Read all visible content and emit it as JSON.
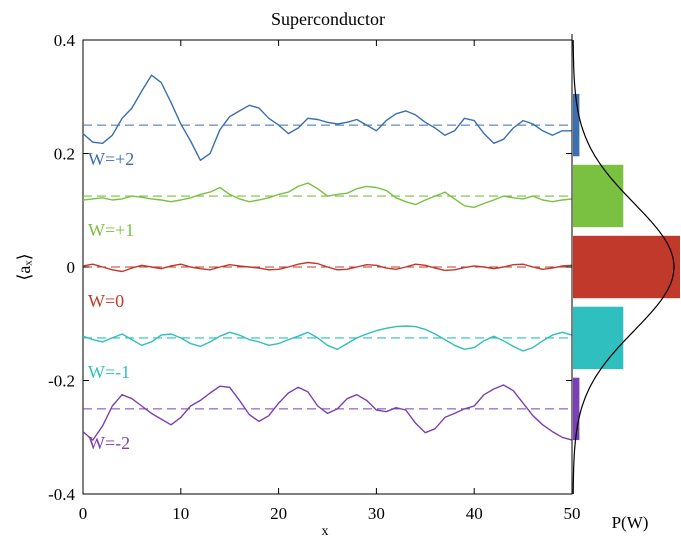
{
  "chart_data": {
    "type": "line",
    "title": "Superconductor",
    "xlabel": "x",
    "ylabel": "⟨aₓ⟩",
    "hist_label": "P(W)",
    "xlim": [
      0,
      50
    ],
    "ylim": [
      -0.4,
      0.4
    ],
    "xticks": [
      "0",
      "10",
      "20",
      "30",
      "40",
      "50"
    ],
    "yticks": [
      "0.4",
      "0.2",
      "0",
      "-0.2",
      "-0.4"
    ],
    "ytick_values": [
      0.4,
      0.2,
      0,
      -0.2,
      -0.4
    ],
    "xtick_values": [
      0,
      10,
      20,
      30,
      40,
      50
    ],
    "x": [
      0,
      1,
      2,
      3,
      4,
      5,
      6,
      7,
      8,
      9,
      10,
      11,
      12,
      13,
      14,
      15,
      16,
      17,
      18,
      19,
      20,
      21,
      22,
      23,
      24,
      25,
      26,
      27,
      28,
      29,
      30,
      31,
      32,
      33,
      34,
      35,
      36,
      37,
      38,
      39,
      40,
      41,
      42,
      43,
      44,
      45,
      46,
      47,
      48,
      49,
      50
    ],
    "series": [
      {
        "name": "W=+2",
        "color": "#3a6fb0",
        "level": 0.25,
        "values": [
          0.235,
          0.22,
          0.218,
          0.232,
          0.262,
          0.28,
          0.31,
          0.338,
          0.325,
          0.29,
          0.252,
          0.222,
          0.188,
          0.2,
          0.242,
          0.265,
          0.275,
          0.285,
          0.28,
          0.262,
          0.25,
          0.235,
          0.245,
          0.262,
          0.26,
          0.255,
          0.252,
          0.255,
          0.26,
          0.25,
          0.24,
          0.258,
          0.27,
          0.275,
          0.268,
          0.255,
          0.245,
          0.232,
          0.24,
          0.262,
          0.258,
          0.235,
          0.218,
          0.225,
          0.245,
          0.258,
          0.252,
          0.24,
          0.232,
          0.24,
          0.24
        ]
      },
      {
        "name": "W=+1",
        "color": "#7ac142",
        "level": 0.125,
        "values": [
          0.118,
          0.12,
          0.122,
          0.118,
          0.12,
          0.125,
          0.123,
          0.12,
          0.118,
          0.115,
          0.118,
          0.122,
          0.128,
          0.132,
          0.14,
          0.128,
          0.12,
          0.115,
          0.118,
          0.122,
          0.128,
          0.132,
          0.142,
          0.148,
          0.138,
          0.125,
          0.128,
          0.13,
          0.138,
          0.142,
          0.14,
          0.135,
          0.122,
          0.115,
          0.11,
          0.118,
          0.125,
          0.132,
          0.12,
          0.108,
          0.105,
          0.112,
          0.118,
          0.125,
          0.122,
          0.12,
          0.125,
          0.118,
          0.115,
          0.118,
          0.12
        ]
      },
      {
        "name": "W=0",
        "color": "#c0392b",
        "level": 0,
        "values": [
          0.002,
          0.005,
          0.0,
          -0.005,
          -0.008,
          -0.002,
          0.003,
          0.0,
          -0.003,
          0.002,
          0.005,
          0.0,
          -0.003,
          -0.005,
          0.0,
          0.004,
          0.002,
          0.0,
          -0.002,
          -0.005,
          -0.004,
          0.0,
          0.005,
          0.008,
          0.006,
          0.0,
          -0.005,
          -0.004,
          0.0,
          0.004,
          0.003,
          -0.002,
          -0.004,
          0.0,
          0.005,
          0.003,
          -0.002,
          -0.006,
          -0.005,
          -0.001,
          0.002,
          0.0,
          -0.003,
          0.0,
          0.004,
          0.005,
          0.0,
          -0.004,
          -0.002,
          0.002,
          0.003
        ]
      },
      {
        "name": "W=-1",
        "color": "#2fbfbf",
        "level": -0.125,
        "values": [
          -0.122,
          -0.128,
          -0.132,
          -0.125,
          -0.118,
          -0.128,
          -0.138,
          -0.132,
          -0.12,
          -0.118,
          -0.125,
          -0.135,
          -0.14,
          -0.132,
          -0.122,
          -0.115,
          -0.12,
          -0.128,
          -0.132,
          -0.138,
          -0.135,
          -0.128,
          -0.122,
          -0.115,
          -0.125,
          -0.138,
          -0.145,
          -0.135,
          -0.125,
          -0.118,
          -0.112,
          -0.108,
          -0.105,
          -0.104,
          -0.105,
          -0.11,
          -0.118,
          -0.128,
          -0.138,
          -0.145,
          -0.142,
          -0.13,
          -0.122,
          -0.13,
          -0.14,
          -0.148,
          -0.142,
          -0.13,
          -0.12,
          -0.115,
          -0.12
        ]
      },
      {
        "name": "W=-2",
        "color": "#7b3fb6",
        "level": -0.25,
        "values": [
          -0.29,
          -0.305,
          -0.28,
          -0.245,
          -0.225,
          -0.232,
          -0.245,
          -0.258,
          -0.268,
          -0.278,
          -0.265,
          -0.245,
          -0.235,
          -0.222,
          -0.21,
          -0.212,
          -0.235,
          -0.26,
          -0.272,
          -0.262,
          -0.24,
          -0.222,
          -0.212,
          -0.22,
          -0.245,
          -0.258,
          -0.25,
          -0.232,
          -0.225,
          -0.235,
          -0.252,
          -0.255,
          -0.248,
          -0.252,
          -0.275,
          -0.292,
          -0.285,
          -0.265,
          -0.258,
          -0.25,
          -0.245,
          -0.225,
          -0.215,
          -0.208,
          -0.218,
          -0.24,
          -0.262,
          -0.278,
          -0.29,
          -0.3,
          -0.305
        ]
      }
    ],
    "histogram": {
      "xlabel": "P(W)",
      "bars": [
        {
          "name": "W=+2",
          "y": 0.25,
          "value": 0.06,
          "color": "#3a6fb0"
        },
        {
          "name": "W=+1",
          "y": 0.125,
          "value": 0.47,
          "color": "#7ac142"
        },
        {
          "name": "W=0",
          "y": 0,
          "value": 1.0,
          "color": "#c0392b"
        },
        {
          "name": "W=-1",
          "y": -0.125,
          "value": 0.47,
          "color": "#2fbfbf"
        },
        {
          "name": "W=-2",
          "y": -0.25,
          "value": 0.06,
          "color": "#7b3fb6"
        }
      ],
      "bar_half_heights": [
        0.055,
        0.055,
        0.055,
        0.055,
        0.055
      ],
      "gaussian_sigma": 0.112
    }
  }
}
